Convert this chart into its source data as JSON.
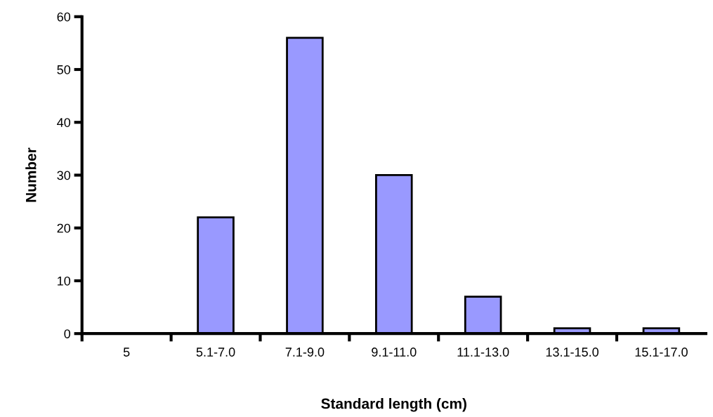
{
  "chart_data": {
    "type": "bar",
    "xlabel": "Standard length (cm)",
    "ylabel": "Number",
    "categories": [
      "5",
      "5.1-7.0",
      "7.1-9.0",
      "9.1-11.0",
      "11.1-13.0",
      "13.1-15.0",
      "15.1-17.0"
    ],
    "values": [
      0,
      22,
      56,
      30,
      7,
      1,
      1
    ],
    "color": "#9999ff",
    "ylim": [
      0,
      60
    ],
    "yticks": [
      0,
      10,
      20,
      30,
      40,
      50,
      60
    ],
    "grid": false,
    "legend": false
  }
}
